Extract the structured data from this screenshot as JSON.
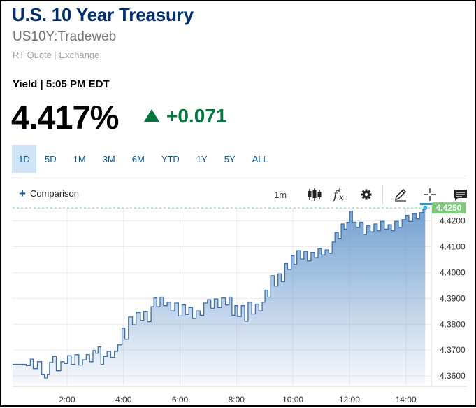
{
  "header": {
    "title": "U.S. 10 Year Treasury",
    "symbol": "US10Y:Tradeweb",
    "quote_type": "RT Quote",
    "quote_sep": "|",
    "exchange": "Exchange"
  },
  "quote": {
    "label": "Yield | 5:05 PM EDT",
    "price": "4.417%",
    "change": "+0.071",
    "change_color": "#00783e"
  },
  "ranges": {
    "items": [
      "1D",
      "5D",
      "1M",
      "3M",
      "6M",
      "YTD",
      "1Y",
      "5Y",
      "ALL"
    ],
    "selected": "1D"
  },
  "toolbar": {
    "comparison_label": "Comparison",
    "interval": "1m",
    "icons": [
      "candlestick-icon",
      "function-icon",
      "gear-icon",
      "pencil-icon",
      "crosshair-icon",
      "comment-icon"
    ],
    "active_tool": "crosshair-icon"
  },
  "chart_data": {
    "type": "area",
    "x_ticks": [
      "2:00",
      "4:00",
      "6:00",
      "8:00",
      "10:00",
      "12:00",
      "14:00"
    ],
    "y_ticks": [
      "4.3600",
      "4.3700",
      "4.3800",
      "4.3900",
      "4.4000",
      "4.4100",
      "4.4200"
    ],
    "ylim": [
      4.3565,
      4.4245
    ],
    "last_value_label": "4.4250",
    "last_value": 4.425,
    "x_unit": "hours",
    "xlim": [
      0.07,
      14.9
    ],
    "series_color": "#3a6fa8",
    "grid": true,
    "points": [
      [
        0.07,
        4.3645
      ],
      [
        0.3,
        4.3645
      ],
      [
        0.55,
        4.364
      ],
      [
        0.7,
        4.3665
      ],
      [
        0.8,
        4.3628
      ],
      [
        0.95,
        4.3655
      ],
      [
        1.1,
        4.3605
      ],
      [
        1.2,
        4.3592
      ],
      [
        1.3,
        4.3605
      ],
      [
        1.38,
        4.3652
      ],
      [
        1.5,
        4.3675
      ],
      [
        1.62,
        4.362
      ],
      [
        1.78,
        4.3655
      ],
      [
        1.9,
        4.3648
      ],
      [
        2.02,
        4.3678
      ],
      [
        2.15,
        4.3645
      ],
      [
        2.28,
        4.3682
      ],
      [
        2.42,
        4.3642
      ],
      [
        2.55,
        4.3662
      ],
      [
        2.68,
        4.3682
      ],
      [
        2.8,
        4.3655
      ],
      [
        2.92,
        4.3698
      ],
      [
        3.02,
        4.3688
      ],
      [
        3.1,
        4.3712
      ],
      [
        3.2,
        4.3645
      ],
      [
        3.3,
        4.3675
      ],
      [
        3.42,
        4.3695
      ],
      [
        3.55,
        4.3672
      ],
      [
        3.68,
        4.3695
      ],
      [
        3.8,
        4.372
      ],
      [
        3.95,
        4.3785
      ],
      [
        4.05,
        4.3742
      ],
      [
        4.18,
        4.3828
      ],
      [
        4.32,
        4.3798
      ],
      [
        4.45,
        4.3845
      ],
      [
        4.6,
        4.3815
      ],
      [
        4.72,
        4.3848
      ],
      [
        4.85,
        4.381
      ],
      [
        4.98,
        4.3868
      ],
      [
        5.08,
        4.3902
      ],
      [
        5.18,
        4.3868
      ],
      [
        5.3,
        4.3905
      ],
      [
        5.42,
        4.3872
      ],
      [
        5.55,
        4.3885
      ],
      [
        5.68,
        4.3852
      ],
      [
        5.82,
        4.3882
      ],
      [
        5.95,
        4.3832
      ],
      [
        6.08,
        4.3875
      ],
      [
        6.2,
        4.3838
      ],
      [
        6.32,
        4.3865
      ],
      [
        6.45,
        4.3822
      ],
      [
        6.58,
        4.3852
      ],
      [
        6.72,
        4.3835
      ],
      [
        6.85,
        4.3882
      ],
      [
        6.98,
        4.3895
      ],
      [
        7.1,
        4.3862
      ],
      [
        7.22,
        4.3898
      ],
      [
        7.35,
        4.3865
      ],
      [
        7.48,
        4.3902
      ],
      [
        7.62,
        4.3875
      ],
      [
        7.75,
        4.3905
      ],
      [
        7.85,
        4.3835
      ],
      [
        7.95,
        4.3872
      ],
      [
        8.05,
        4.383
      ],
      [
        8.18,
        4.3872
      ],
      [
        8.3,
        4.3812
      ],
      [
        8.42,
        4.3885
      ],
      [
        8.55,
        4.384
      ],
      [
        8.68,
        4.3878
      ],
      [
        8.8,
        4.3852
      ],
      [
        8.92,
        4.3885
      ],
      [
        9.02,
        4.3932
      ],
      [
        9.12,
        4.3905
      ],
      [
        9.22,
        4.3988
      ],
      [
        9.35,
        4.3948
      ],
      [
        9.48,
        4.3995
      ],
      [
        9.6,
        4.3965
      ],
      [
        9.72,
        4.4035
      ],
      [
        9.82,
        4.4012
      ],
      [
        9.95,
        4.4065
      ],
      [
        10.05,
        4.4032
      ],
      [
        10.15,
        4.4085
      ],
      [
        10.28,
        4.4052
      ],
      [
        10.4,
        4.4082
      ],
      [
        10.52,
        4.4045
      ],
      [
        10.65,
        4.4078
      ],
      [
        10.78,
        4.4058
      ],
      [
        10.9,
        4.4092
      ],
      [
        11.02,
        4.4068
      ],
      [
        11.15,
        4.4088
      ],
      [
        11.28,
        4.4075
      ],
      [
        11.4,
        4.4118
      ],
      [
        11.5,
        4.4155
      ],
      [
        11.62,
        4.4132
      ],
      [
        11.72,
        4.4188
      ],
      [
        11.82,
        4.4168
      ],
      [
        11.92,
        4.4195
      ],
      [
        12.02,
        4.4238
      ],
      [
        12.12,
        4.4195
      ],
      [
        12.25,
        4.4175
      ],
      [
        12.38,
        4.4195
      ],
      [
        12.5,
        4.4148
      ],
      [
        12.62,
        4.4182
      ],
      [
        12.75,
        4.4158
      ],
      [
        12.88,
        4.4188
      ],
      [
        13.0,
        4.4162
      ],
      [
        13.12,
        4.4198
      ],
      [
        13.25,
        4.4168
      ],
      [
        13.38,
        4.4185
      ],
      [
        13.5,
        4.4162
      ],
      [
        13.62,
        4.4198
      ],
      [
        13.75,
        4.4175
      ],
      [
        13.88,
        4.4205
      ],
      [
        14.0,
        4.4222
      ],
      [
        14.12,
        4.4198
      ],
      [
        14.25,
        4.4228
      ],
      [
        14.38,
        4.4208
      ],
      [
        14.5,
        4.4232
      ],
      [
        14.62,
        4.4245
      ],
      [
        14.7,
        4.425
      ]
    ]
  }
}
